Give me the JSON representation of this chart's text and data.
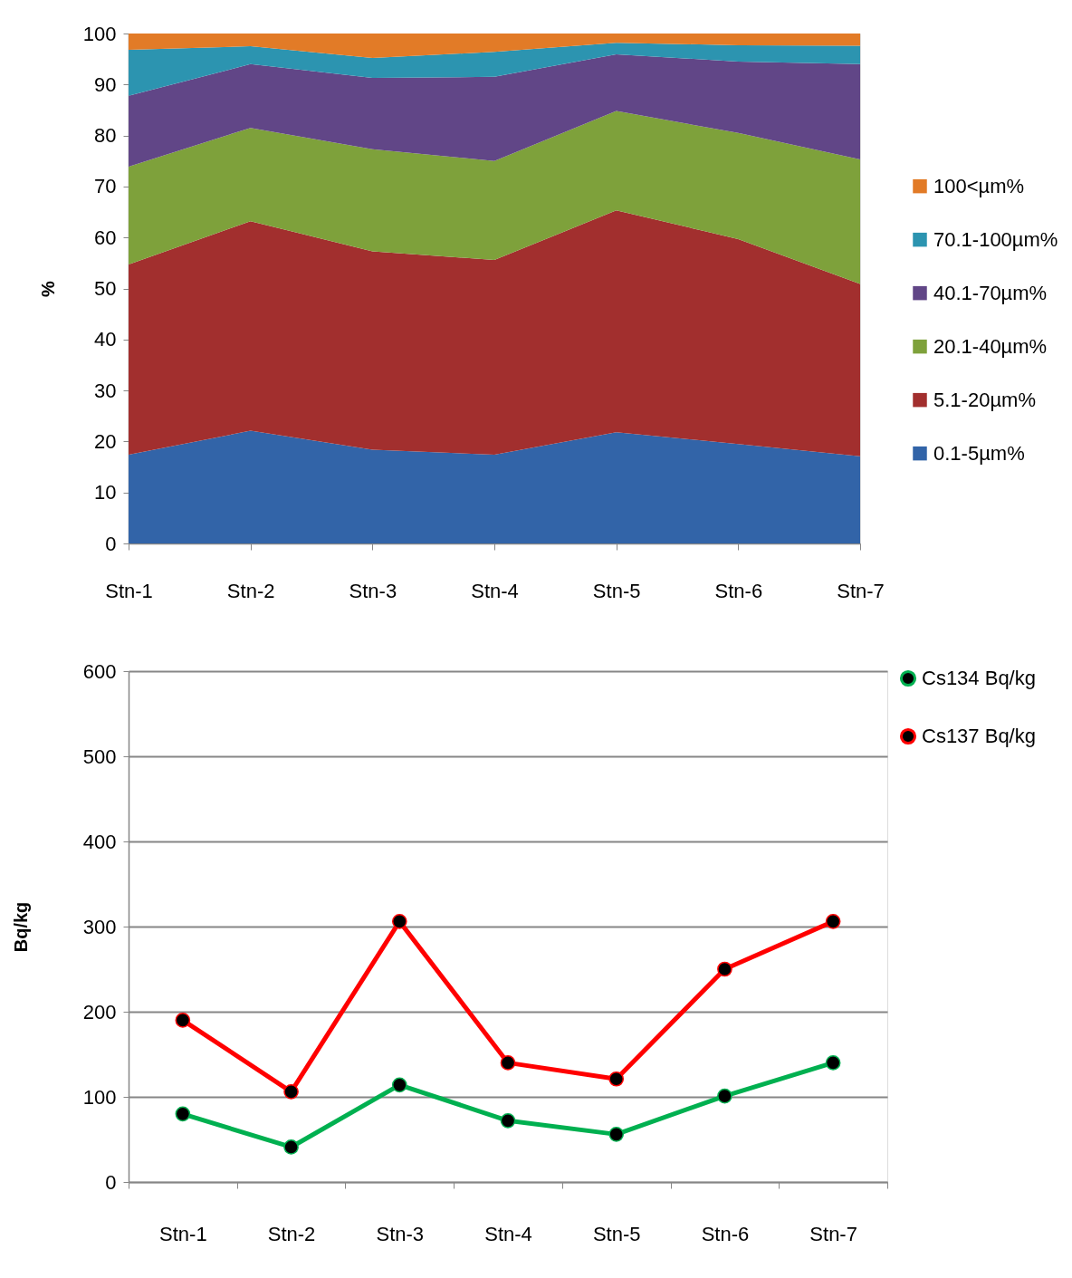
{
  "chart_data": [
    {
      "type": "area",
      "ylabel": "%",
      "categories": [
        "Stn-1",
        "Stn-2",
        "Stn-3",
        "Stn-4",
        "Stn-5",
        "Stn-6",
        "Stn-7"
      ],
      "stacked": true,
      "series": [
        {
          "name": "0.1-5µm%",
          "color": "#3264a8",
          "values": [
            17.4,
            22.1,
            18.4,
            17.4,
            21.8,
            19.5,
            17.1
          ]
        },
        {
          "name": "5.1-20µm%",
          "color": "#a22f2e",
          "values": [
            37.3,
            41.1,
            38.9,
            38.2,
            43.5,
            40.2,
            33.8
          ]
        },
        {
          "name": "20.1-40µm%",
          "color": "#7ea13b",
          "values": [
            19.2,
            18.3,
            20.0,
            19.4,
            19.5,
            20.8,
            24.4
          ]
        },
        {
          "name": "40.1-70µm%",
          "color": "#614687",
          "values": [
            13.9,
            12.5,
            14.0,
            16.5,
            11.1,
            14.0,
            18.7
          ]
        },
        {
          "name": "70.1-100µm%",
          "color": "#2c94b0",
          "values": [
            9.0,
            3.5,
            3.9,
            4.9,
            2.3,
            3.2,
            3.6
          ]
        },
        {
          "name": "100<µm%",
          "color": "#e27b27",
          "values": [
            3.2,
            2.5,
            4.8,
            3.6,
            1.8,
            2.3,
            2.4
          ]
        }
      ],
      "ylim": [
        0,
        100
      ],
      "yticks": [
        0,
        10,
        20,
        30,
        40,
        50,
        60,
        70,
        80,
        90,
        100
      ],
      "legend": "right"
    },
    {
      "type": "line",
      "ylabel": "Bq/kg",
      "categories": [
        "Stn-1",
        "Stn-2",
        "Stn-3",
        "Stn-4",
        "Stn-5",
        "Stn-6",
        "Stn-7"
      ],
      "series": [
        {
          "name": "Cs134 Bq/kg",
          "color": "#00b050",
          "values": [
            80,
            41,
            114,
            72,
            56,
            101,
            140
          ]
        },
        {
          "name": "Cs137 Bq/kg",
          "color": "#ff0000",
          "values": [
            190,
            106,
            306,
            140,
            121,
            250,
            306
          ]
        }
      ],
      "ylim": [
        0,
        600
      ],
      "yticks": [
        0,
        100,
        200,
        300,
        400,
        500,
        600
      ],
      "grid": "y",
      "legend": "top right",
      "marker": "circle",
      "line_style": "solid"
    }
  ]
}
